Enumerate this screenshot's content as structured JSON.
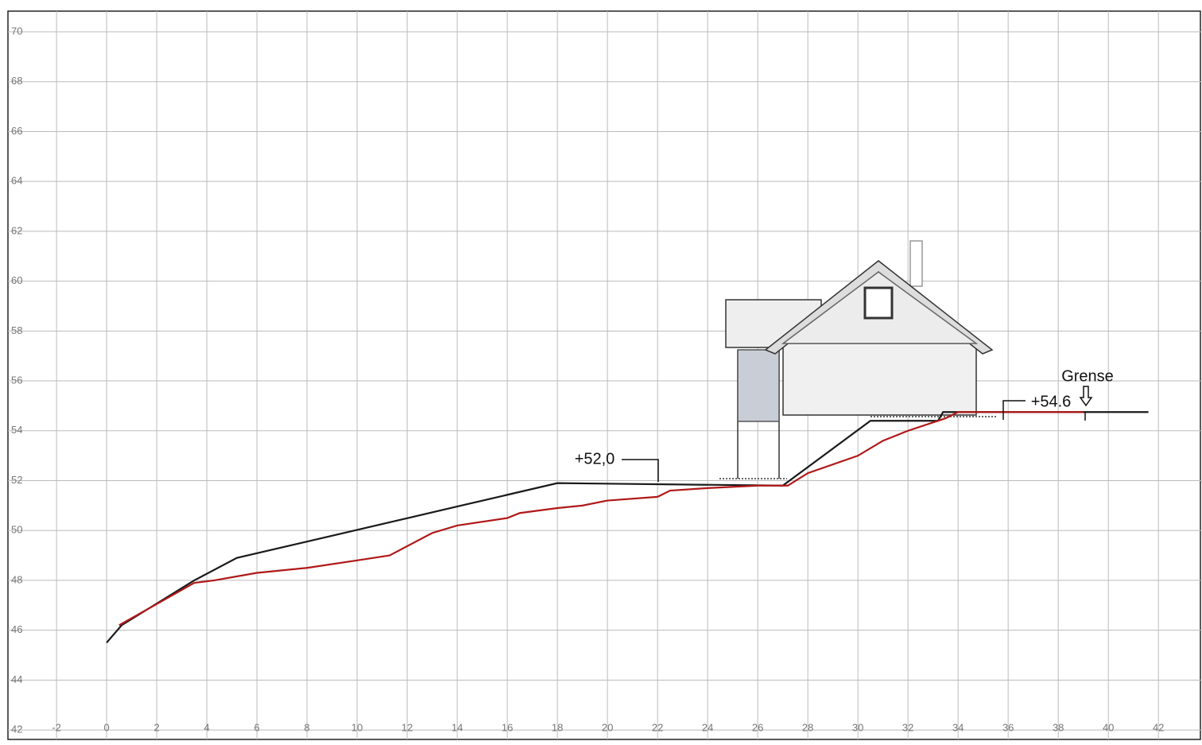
{
  "chart_data": {
    "type": "line",
    "xlim": [
      -3.94,
      43.74
    ],
    "ylim": [
      41.62,
      70.83
    ],
    "xticks": [
      -2,
      0,
      2,
      4,
      6,
      8,
      10,
      12,
      14,
      16,
      18,
      20,
      22,
      24,
      26,
      28,
      30,
      32,
      34,
      36,
      38,
      40,
      42
    ],
    "yticks": [
      42,
      44,
      46,
      48,
      50,
      52,
      54,
      56,
      58,
      60,
      62,
      64,
      66,
      68,
      70
    ],
    "grid": true,
    "series": [
      {
        "color": "#1a1a1a",
        "x": [
          0,
          0.6,
          3.5,
          5.2,
          18,
          27,
          30.5,
          33.2,
          33.4,
          41.6
        ],
        "values": [
          45.5,
          46.2,
          48,
          48.9,
          51.9,
          51.8,
          54.4,
          54.4,
          54.75,
          54.75
        ]
      },
      {
        "color": "#b01818",
        "x": [
          0.5,
          3.5,
          4.3,
          6,
          8,
          10,
          11.3,
          13,
          14,
          16,
          16.5,
          18,
          19,
          20,
          22,
          22.5,
          24,
          26,
          27.2,
          28,
          30,
          31,
          32,
          33.5,
          34,
          39
        ],
        "values": [
          46.2,
          47.9,
          48,
          48.3,
          48.5,
          48.8,
          49,
          49.9,
          50.2,
          50.5,
          50.7,
          50.9,
          51,
          51.2,
          51.35,
          51.6,
          51.7,
          51.8,
          51.8,
          52.3,
          53,
          53.6,
          54,
          54.5,
          54.75,
          54.75
        ]
      }
    ],
    "annotations": [
      "+52,0",
      "+54.6",
      "Grense"
    ]
  }
}
